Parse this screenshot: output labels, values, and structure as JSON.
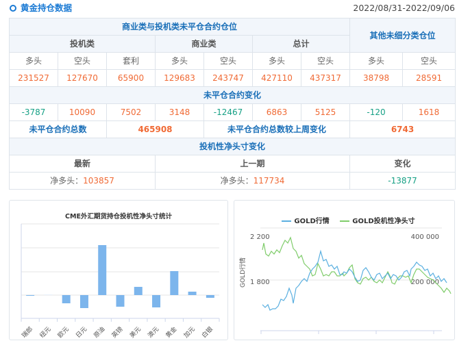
{
  "header": {
    "title": "黄金持仓数据",
    "date_range": "2022/08/31-2022/09/06"
  },
  "table": {
    "section1_title": "商业类与投机类未平仓合约仓位",
    "other_title": "其他未细分类仓位",
    "groups": [
      "投机类",
      "商业类",
      "总计"
    ],
    "columns": [
      "多头",
      "空头",
      "套利",
      "多头",
      "空头",
      "多头",
      "空头",
      "多头",
      "空头"
    ],
    "positions": [
      "231527",
      "127670",
      "65900",
      "129683",
      "243747",
      "427110",
      "437317",
      "38798",
      "28591"
    ],
    "change_title": "未平仓合约变化",
    "changes": [
      "-3787",
      "10090",
      "7502",
      "3148",
      "-12467",
      "6863",
      "5125",
      "-120",
      "1618"
    ],
    "change_colors": [
      "grn",
      "red",
      "red",
      "red",
      "grn",
      "red",
      "red",
      "grn",
      "red"
    ],
    "total_label": "未平仓合约总数",
    "total_value": "465908",
    "weekly_change_label": "未平仓合约总数较上周变化",
    "weekly_change_value": "6743",
    "net_title": "投机性净头寸变化",
    "net_headers": [
      "最新",
      "上一期",
      "变化"
    ],
    "net_prefix": "净多头：",
    "net_latest": "103857",
    "net_previous": "117734",
    "net_change": "-13877"
  },
  "chart_data": [
    {
      "type": "bar",
      "title": "CME外汇期货持仓投机性净头寸统计",
      "categories": [
        "瑞郎",
        "纽元",
        "欧元",
        "日元",
        "原油",
        "英镑",
        "美元",
        "澳元",
        "黄金",
        "加元",
        "白银"
      ],
      "values": [
        -1,
        0,
        -12,
        -19,
        73,
        -17,
        12,
        -18,
        35,
        5,
        -4
      ],
      "values_note": "relative bar heights in pixels above/below the zero line; the y-axis has no tick labels, so actual net-position values are not recoverable from the image",
      "xlabel": "",
      "ylabel": "",
      "grid": true,
      "color": "#7cb5ec"
    },
    {
      "type": "line",
      "legend": [
        "GOLD行情",
        "GOLD投机性净头寸"
      ],
      "series_colors": [
        "#5aafe0",
        "#7fcc6a"
      ],
      "ylabel_left": "GOLD行情",
      "yticks_left": [
        "2 200",
        "1 800"
      ],
      "yticks_right": [
        "400 000",
        "200 000"
      ],
      "grid": true,
      "legend_position": "top"
    }
  ]
}
